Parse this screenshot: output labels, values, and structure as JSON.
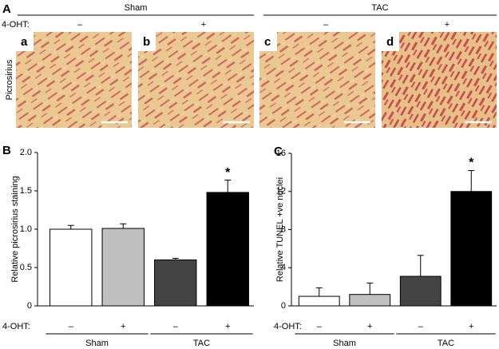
{
  "panel_a": {
    "label": "A",
    "groups": [
      "Sham",
      "TAC"
    ],
    "row_label": "4-OHT:",
    "treatments": [
      "–",
      "+",
      "–",
      "+"
    ],
    "stain": "Picrosirius",
    "images": [
      "a",
      "b",
      "c",
      "d"
    ]
  },
  "chart_data": [
    {
      "type": "bar",
      "panel_label": "B",
      "ylabel": "Relative picrosirius staining",
      "x_row_label": "4-OHT:",
      "categories": [
        "–",
        "+",
        "–",
        "+"
      ],
      "groups": [
        "Sham",
        "TAC"
      ],
      "values": [
        1.0,
        1.01,
        0.6,
        1.48
      ],
      "errors": [
        0.05,
        0.06,
        0.02,
        0.16
      ],
      "colors": [
        "#ffffff",
        "#c0c0c0",
        "#444444",
        "#000000"
      ],
      "significance": [
        null,
        null,
        null,
        "*"
      ],
      "ylim": [
        0,
        2
      ],
      "yticks": [
        0,
        0.5,
        {
          "value": 1,
          "label": "1.0"
        },
        1.5,
        {
          "value": 2,
          "label": "2.0"
        }
      ]
    },
    {
      "type": "bar",
      "panel_label": "C",
      "ylabel": "Relative TUNEL +ve nuclei",
      "x_row_label": "4-OHT:",
      "categories": [
        "–",
        "+",
        "–",
        "+"
      ],
      "groups": [
        "Sham",
        "TAC"
      ],
      "values": [
        1.0,
        1.2,
        3.1,
        12.0
      ],
      "errors": [
        0.9,
        1.2,
        2.2,
        2.2
      ],
      "colors": [
        "#ffffff",
        "#c0c0c0",
        "#444444",
        "#000000"
      ],
      "significance": [
        null,
        null,
        null,
        "*"
      ],
      "ylim": [
        0,
        16
      ],
      "yticks": [
        0,
        4,
        8,
        12,
        16
      ]
    }
  ]
}
